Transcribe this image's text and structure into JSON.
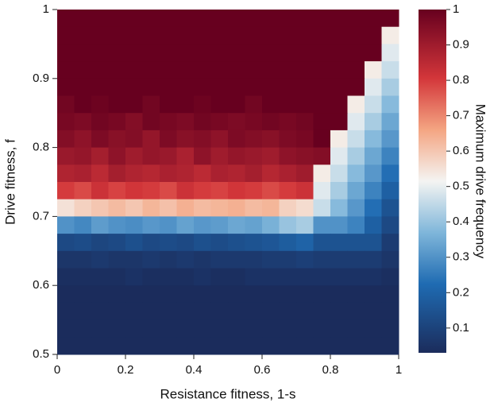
{
  "chart_data": {
    "type": "heatmap",
    "xlabel": "Resistance fitness, 1-s",
    "ylabel": "Drive fitness, f",
    "colorbar_label": "Maximum drive frequency",
    "x": [
      0.025,
      0.075,
      0.125,
      0.175,
      0.225,
      0.275,
      0.325,
      0.375,
      0.425,
      0.475,
      0.525,
      0.575,
      0.625,
      0.675,
      0.725,
      0.775,
      0.825,
      0.875,
      0.925,
      0.975
    ],
    "y": [
      0.9875,
      0.9625,
      0.9375,
      0.9125,
      0.8875,
      0.8625,
      0.8375,
      0.8125,
      0.7875,
      0.7625,
      0.7375,
      0.7125,
      0.6875,
      0.6625,
      0.6375,
      0.6125,
      0.5875,
      0.5625,
      0.5375,
      0.5125
    ],
    "values": [
      [
        1,
        1,
        1,
        1,
        1,
        1,
        1,
        1,
        1,
        1,
        1,
        1,
        1,
        1,
        1,
        1,
        1,
        1,
        1,
        1
      ],
      [
        1,
        1,
        1,
        1,
        1,
        1,
        1,
        1,
        1,
        1,
        1,
        1,
        1,
        1,
        1,
        1,
        1,
        1,
        1,
        0.53
      ],
      [
        1,
        1,
        1,
        1,
        1,
        1,
        1,
        1,
        1,
        1,
        1,
        1,
        1,
        1,
        1,
        1,
        1,
        1,
        1,
        0.49
      ],
      [
        1,
        1,
        1,
        1,
        1,
        1,
        1,
        1,
        1,
        1,
        1,
        1,
        1,
        1,
        1,
        1,
        1,
        1,
        0.53,
        0.46
      ],
      [
        1,
        1,
        1,
        1,
        1,
        1,
        1,
        1,
        1,
        1,
        1,
        1,
        1,
        1,
        1,
        1,
        1,
        1,
        0.49,
        0.42
      ],
      [
        0.98,
        1,
        0.99,
        1,
        1,
        0.98,
        1,
        1,
        0.99,
        1,
        1,
        0.98,
        1,
        1,
        1,
        1,
        1,
        0.53,
        0.46,
        0.38
      ],
      [
        0.97,
        0.96,
        0.98,
        0.97,
        0.95,
        0.98,
        0.97,
        0.96,
        0.98,
        0.97,
        0.96,
        0.97,
        0.98,
        0.97,
        0.98,
        1,
        1,
        0.49,
        0.42,
        0.34
      ],
      [
        0.95,
        0.93,
        0.96,
        0.94,
        0.95,
        0.92,
        0.96,
        0.94,
        0.95,
        0.93,
        0.96,
        0.95,
        0.94,
        0.96,
        0.97,
        1,
        0.53,
        0.46,
        0.38,
        0.31
      ],
      [
        0.91,
        0.92,
        0.89,
        0.93,
        0.9,
        0.92,
        0.91,
        0.88,
        0.93,
        0.9,
        0.92,
        0.91,
        0.9,
        0.93,
        0.94,
        0.95,
        0.49,
        0.42,
        0.34,
        0.27
      ],
      [
        0.87,
        0.88,
        0.85,
        0.89,
        0.87,
        0.86,
        0.88,
        0.87,
        0.85,
        0.88,
        0.87,
        0.89,
        0.86,
        0.88,
        0.9,
        0.53,
        0.46,
        0.38,
        0.31,
        0.23
      ],
      [
        0.8,
        0.78,
        0.82,
        0.79,
        0.81,
        0.8,
        0.78,
        0.82,
        0.8,
        0.79,
        0.81,
        0.8,
        0.78,
        0.8,
        0.82,
        0.49,
        0.42,
        0.34,
        0.27,
        0.19
      ],
      [
        0.55,
        0.58,
        0.6,
        0.62,
        0.6,
        0.63,
        0.61,
        0.64,
        0.62,
        0.63,
        0.64,
        0.62,
        0.63,
        0.58,
        0.56,
        0.46,
        0.38,
        0.31,
        0.23,
        0.15
      ],
      [
        0.3,
        0.28,
        0.32,
        0.3,
        0.29,
        0.31,
        0.3,
        0.33,
        0.31,
        0.32,
        0.34,
        0.33,
        0.36,
        0.4,
        0.42,
        0.3,
        0.3,
        0.27,
        0.19,
        0.12
      ],
      [
        0.12,
        0.13,
        0.11,
        0.12,
        0.14,
        0.12,
        0.13,
        0.12,
        0.14,
        0.13,
        0.14,
        0.15,
        0.16,
        0.18,
        0.2,
        0.15,
        0.15,
        0.15,
        0.15,
        0.08
      ],
      [
        0.06,
        0.06,
        0.07,
        0.06,
        0.06,
        0.07,
        0.06,
        0.07,
        0.06,
        0.07,
        0.07,
        0.07,
        0.08,
        0.08,
        0.09,
        0.08,
        0.08,
        0.08,
        0.08,
        0.06
      ],
      [
        0.04,
        0.04,
        0.04,
        0.04,
        0.05,
        0.04,
        0.04,
        0.04,
        0.05,
        0.04,
        0.04,
        0.05,
        0.05,
        0.05,
        0.05,
        0.05,
        0.05,
        0.05,
        0.05,
        0.04
      ],
      [
        0.03,
        0.03,
        0.03,
        0.03,
        0.03,
        0.03,
        0.03,
        0.03,
        0.03,
        0.03,
        0.03,
        0.03,
        0.03,
        0.03,
        0.03,
        0.03,
        0.03,
        0.03,
        0.03,
        0.03
      ],
      [
        0.03,
        0.03,
        0.03,
        0.03,
        0.03,
        0.03,
        0.03,
        0.03,
        0.03,
        0.03,
        0.03,
        0.03,
        0.03,
        0.03,
        0.03,
        0.03,
        0.03,
        0.03,
        0.03,
        0.03
      ],
      [
        0.03,
        0.03,
        0.03,
        0.03,
        0.03,
        0.03,
        0.03,
        0.03,
        0.03,
        0.03,
        0.03,
        0.03,
        0.03,
        0.03,
        0.03,
        0.03,
        0.03,
        0.03,
        0.03,
        0.03
      ],
      [
        0.03,
        0.03,
        0.03,
        0.03,
        0.03,
        0.03,
        0.03,
        0.03,
        0.03,
        0.03,
        0.03,
        0.03,
        0.03,
        0.03,
        0.03,
        0.03,
        0.03,
        0.03,
        0.03,
        0.03
      ]
    ],
    "xlim": [
      0,
      1
    ],
    "xticks": [
      0,
      0.2,
      0.4,
      0.6,
      0.8,
      1
    ],
    "ylim": [
      0.5,
      1
    ],
    "yticks": [
      0.5,
      0.6,
      0.7,
      0.8,
      0.9,
      1
    ],
    "clim": [
      0.03,
      1
    ],
    "cticks": [
      0.1,
      0.2,
      0.3,
      0.4,
      0.5,
      0.6,
      0.7,
      0.8,
      0.9,
      1
    ],
    "colorscale": [
      [
        0,
        "#1b2c5c"
      ],
      [
        0.2,
        "#1f6bb2"
      ],
      [
        0.35,
        "#7fb6da"
      ],
      [
        0.5,
        "#f4f4f2"
      ],
      [
        0.65,
        "#f4a582"
      ],
      [
        0.8,
        "#d3363a"
      ],
      [
        1,
        "#67001f"
      ]
    ]
  }
}
